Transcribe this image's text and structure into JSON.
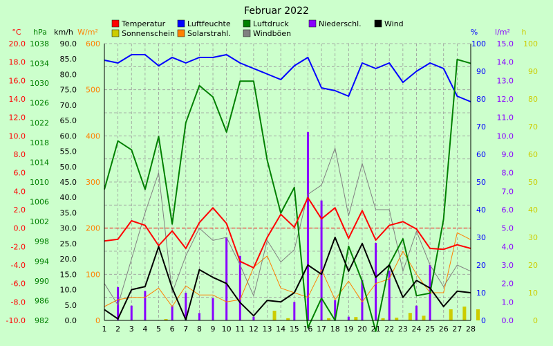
{
  "chart_data": {
    "type": "line",
    "title": "Februar 2022",
    "x": [
      1,
      2,
      3,
      4,
      5,
      6,
      7,
      8,
      9,
      10,
      11,
      12,
      13,
      14,
      15,
      16,
      17,
      18,
      19,
      20,
      21,
      22,
      23,
      24,
      25,
      26,
      27,
      28
    ],
    "grid": true,
    "colors": {
      "background": "#ccffcc",
      "plot": "#ccffcc",
      "grid": "#999999",
      "temp": "#ff0000",
      "hum": "#0000ff",
      "press": "#008000",
      "rain": "#8800ff",
      "wind": "#000000",
      "sun": "#cccc00",
      "solar": "#ff8000",
      "gust": "#808080"
    },
    "axes": {
      "temp": {
        "unit": "°C",
        "min": -10,
        "max": 20,
        "ticks": [
          -10,
          -8,
          -6,
          -4,
          -2,
          0,
          2,
          4,
          6,
          8,
          10,
          12,
          14,
          16,
          18,
          20
        ],
        "decimals": 1,
        "color": "#ff0000"
      },
      "press": {
        "unit": "hPa",
        "min": 982,
        "max": 1038,
        "ticks": [
          982,
          986,
          990,
          994,
          998,
          1002,
          1006,
          1010,
          1014,
          1018,
          1022,
          1026,
          1030,
          1034,
          1038
        ],
        "decimals": 0,
        "color": "#008000"
      },
      "wind": {
        "unit": "km/h",
        "min": 0,
        "max": 90,
        "ticks": [
          0,
          5,
          10,
          15,
          20,
          25,
          30,
          35,
          40,
          45,
          50,
          55,
          60,
          65,
          70,
          75,
          80,
          85,
          90
        ],
        "decimals": 1,
        "color": "#000000"
      },
      "solar": {
        "unit": "W/m²",
        "min": 0,
        "max": 600,
        "ticks": [
          0,
          100,
          200,
          300,
          400,
          500,
          600
        ],
        "decimals": 0,
        "color": "#ff8000"
      },
      "hum": {
        "unit": "%",
        "min": 0,
        "max": 100,
        "ticks": [
          0,
          10,
          20,
          30,
          40,
          50,
          60,
          70,
          80,
          90,
          100
        ],
        "decimals": 0,
        "color": "#0000ff"
      },
      "rain": {
        "unit": "l/m²",
        "min": 0,
        "max": 15,
        "ticks": [
          0,
          1,
          2,
          3,
          4,
          5,
          6,
          7,
          8,
          9,
          10,
          11,
          12,
          13,
          14,
          15
        ],
        "decimals": 1,
        "color": "#8800ff"
      },
      "sun": {
        "unit": "h",
        "min": 0,
        "max": 100,
        "ticks": [
          0,
          10,
          20,
          30,
          40,
          50,
          60,
          70,
          80,
          90,
          100
        ],
        "decimals": 0,
        "color": "#cccc00"
      }
    },
    "legend": [
      {
        "key": "temp",
        "label": "Temperatur"
      },
      {
        "key": "hum",
        "label": "Luftfeuchte"
      },
      {
        "key": "press",
        "label": "Luftdruck"
      },
      {
        "key": "rain",
        "label": "Niederschl."
      },
      {
        "key": "wind",
        "label": "Wind"
      },
      {
        "key": "sun",
        "label": "Sonnenschein"
      },
      {
        "key": "solar",
        "label": "Solarstrahl."
      },
      {
        "key": "gust",
        "label": "Windböen"
      }
    ],
    "series": {
      "temp": [
        -1.4,
        -1.2,
        0.8,
        0.3,
        -1.9,
        -0.3,
        -2.2,
        0.6,
        2.2,
        0.5,
        -3.6,
        -4.3,
        -1.0,
        1.5,
        0.1,
        3.3,
        1.0,
        2.2,
        -1.1,
        1.9,
        -1.3,
        0.3,
        0.7,
        -0.1,
        -2.2,
        -2.3,
        -1.8,
        -2.2
      ],
      "hum": [
        94,
        93,
        96,
        96,
        92,
        95,
        93,
        95,
        95,
        96,
        93,
        91,
        89,
        87,
        92,
        95,
        84,
        83,
        81,
        93,
        91,
        93,
        86,
        90,
        93,
        91,
        81,
        79
      ],
      "press": [
        1008.5,
        1018.3,
        1016.5,
        1008.5,
        1019.2,
        1001.5,
        1022.0,
        1029.5,
        1027.2,
        1020.1,
        1030.4,
        1030.4,
        1014.4,
        1003.7,
        1008.9,
        980.5,
        986.5,
        982.0,
        997.0,
        989.9,
        979.8,
        993.3,
        998.5,
        987.0,
        987.5,
        1002.5,
        1034.8,
        1034.0
      ],
      "wind": [
        3.5,
        0.5,
        10.0,
        11.0,
        24.0,
        10.5,
        0.2,
        16.5,
        14.0,
        12.0,
        5.8,
        1.5,
        6.5,
        6.0,
        9.0,
        18.0,
        15.0,
        27.0,
        16.0,
        25.0,
        14.0,
        18.0,
        7.5,
        13.0,
        10.5,
        4.5,
        9.5,
        9.0
      ],
      "gust": [
        12,
        5,
        20,
        35,
        48,
        9,
        21,
        30,
        26,
        27,
        18,
        8,
        26,
        19,
        23,
        41,
        44,
        56,
        34,
        51,
        36,
        36,
        16,
        29,
        18,
        11,
        18,
        16
      ],
      "solar": [
        30,
        45,
        50,
        50,
        70,
        30,
        75,
        55,
        55,
        40,
        45,
        115,
        140,
        70,
        60,
        50,
        110,
        45,
        85,
        40,
        80,
        90,
        150,
        100,
        60,
        60,
        190,
        175
      ],
      "rain": [
        0,
        1.8,
        0.8,
        1.6,
        0,
        0.8,
        1.5,
        0.4,
        1.2,
        4.5,
        3.5,
        0.2,
        0,
        0,
        1.0,
        10.2,
        6.5,
        1.1,
        0.2,
        2.2,
        4.2,
        2.7,
        0,
        0.8,
        3.0,
        0,
        0,
        0
      ],
      "sun": [
        0,
        0,
        0,
        0,
        0.5,
        0,
        0,
        0,
        0,
        0,
        0,
        0,
        3.5,
        0.8,
        0,
        0,
        0.8,
        0,
        1.2,
        0,
        0.8,
        1.0,
        2.7,
        1.7,
        0,
        4.0,
        5.0,
        4.0
      ]
    }
  }
}
